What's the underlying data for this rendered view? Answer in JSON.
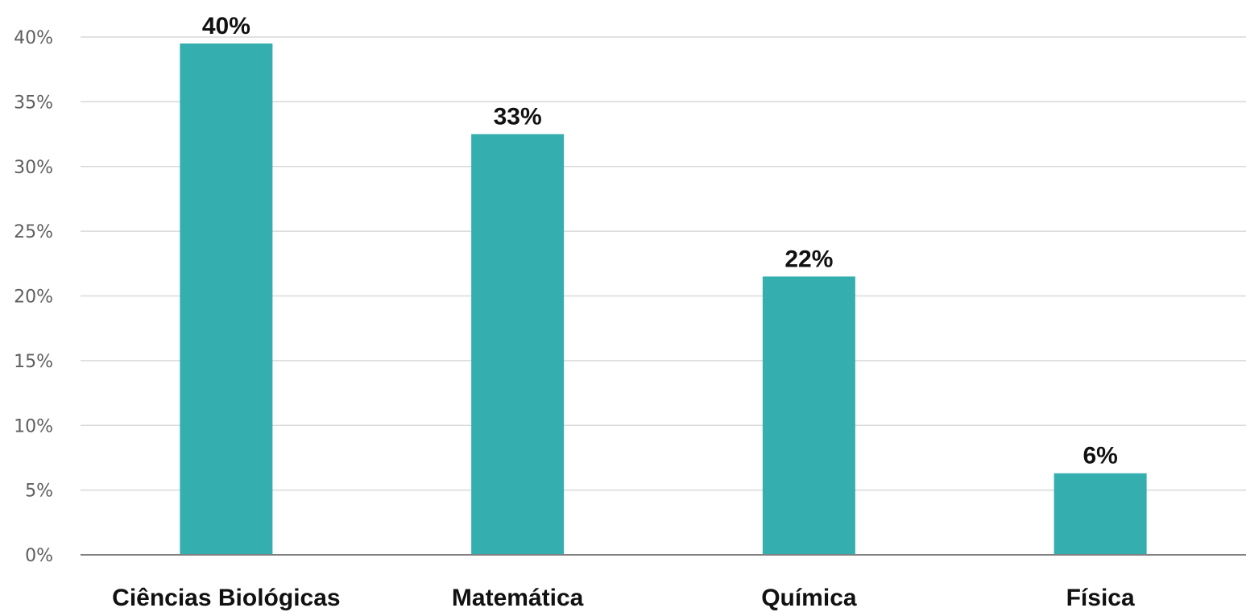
{
  "chart_data": {
    "type": "bar",
    "categories": [
      "Ciências Biológicas",
      "Matemática",
      "Química",
      "Física"
    ],
    "values": [
      39.5,
      32.5,
      21.5,
      6.3
    ],
    "data_labels": [
      "40%",
      "33%",
      "22%",
      "6%"
    ],
    "title": "",
    "xlabel": "",
    "ylabel": "",
    "ylim": [
      0,
      40
    ],
    "yticks": [
      0,
      5,
      10,
      15,
      20,
      25,
      30,
      35,
      40
    ],
    "ytick_labels": [
      "0%",
      "5%",
      "10%",
      "15%",
      "20%",
      "25%",
      "30%",
      "35%",
      "40%"
    ],
    "grid": true,
    "legend": "none",
    "bar_color": "#34aeae",
    "gridline_color": "#d9d9d9",
    "axis_color": "#808080"
  }
}
